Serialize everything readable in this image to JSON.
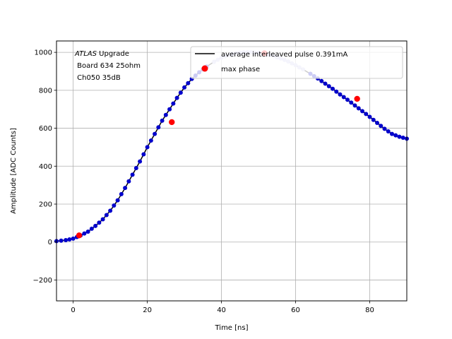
{
  "chart_data": {
    "type": "scatter",
    "title": "",
    "xlabel": "Time [ns]",
    "ylabel": "Amplitude [ADC Counts]",
    "xlim": [
      -4.5,
      90
    ],
    "ylim": [
      -310,
      1060
    ],
    "xticks": [
      0,
      20,
      40,
      60,
      80
    ],
    "yticks": [
      -200,
      0,
      200,
      400,
      600,
      800,
      1000
    ],
    "grid": true,
    "legend_position": "upper-right",
    "annotation": {
      "italic_part": "ATLAS",
      "line1_rest": " Upgrade",
      "line2": " Board 634 25ohm",
      "line3": " Ch050 35dB"
    },
    "series": [
      {
        "name": "average interleaved pulse 0.391mA",
        "style": "line",
        "color": "#000000",
        "x": [
          -4.5,
          -2,
          0,
          2,
          4,
          6,
          8,
          10,
          12,
          14,
          16,
          18,
          20,
          22,
          24,
          26,
          28,
          30,
          32,
          34,
          36,
          38,
          40,
          42,
          44,
          46,
          48,
          50,
          52,
          54,
          56,
          58,
          60,
          62,
          64,
          66,
          68,
          70,
          72,
          74,
          76,
          78,
          80,
          82,
          84,
          86,
          88,
          90
        ],
        "y": [
          5,
          10,
          18,
          35,
          55,
          85,
          120,
          165,
          220,
          285,
          355,
          425,
          500,
          570,
          640,
          700,
          760,
          815,
          860,
          895,
          925,
          950,
          972,
          986,
          995,
          1000,
          1000,
          997,
          990,
          980,
          968,
          952,
          932,
          910,
          887,
          862,
          835,
          808,
          778,
          750,
          720,
          690,
          660,
          628,
          597,
          570,
          555,
          545
        ]
      },
      {
        "name": "",
        "style": "dots",
        "color": "#0000cc",
        "x": [
          -4.5,
          -2,
          0,
          2,
          4,
          6,
          8,
          10,
          12,
          14,
          16,
          18,
          20,
          22,
          24,
          26,
          28,
          30,
          32,
          34,
          36
        ],
        "y": [
          5,
          10,
          18,
          35,
          55,
          85,
          120,
          165,
          220,
          285,
          355,
          425,
          500,
          570,
          640,
          700,
          760,
          815,
          860,
          895,
          925
        ]
      },
      {
        "name": "",
        "style": "dots",
        "color": "#c8c8f0",
        "x": [
          38,
          40,
          42,
          44,
          46,
          48,
          50,
          52,
          54,
          56,
          58,
          60,
          62
        ],
        "y": [
          950,
          972,
          986,
          995,
          1000,
          1000,
          997,
          990,
          980,
          968,
          952,
          932,
          910
        ]
      },
      {
        "name": "",
        "style": "dots",
        "color": "#0000cc",
        "x": [
          64,
          66,
          68,
          70,
          72,
          74,
          76,
          78,
          80,
          82,
          84,
          86,
          88,
          90
        ],
        "y": [
          887,
          862,
          835,
          808,
          778,
          750,
          720,
          690,
          660,
          628,
          597,
          570,
          555,
          545
        ]
      },
      {
        "name": "max phase",
        "style": "marker",
        "color": "#ff0000",
        "x": [
          1.6,
          26.6,
          51.6,
          76.6
        ],
        "y": [
          35,
          632,
          995,
          755
        ]
      }
    ]
  }
}
